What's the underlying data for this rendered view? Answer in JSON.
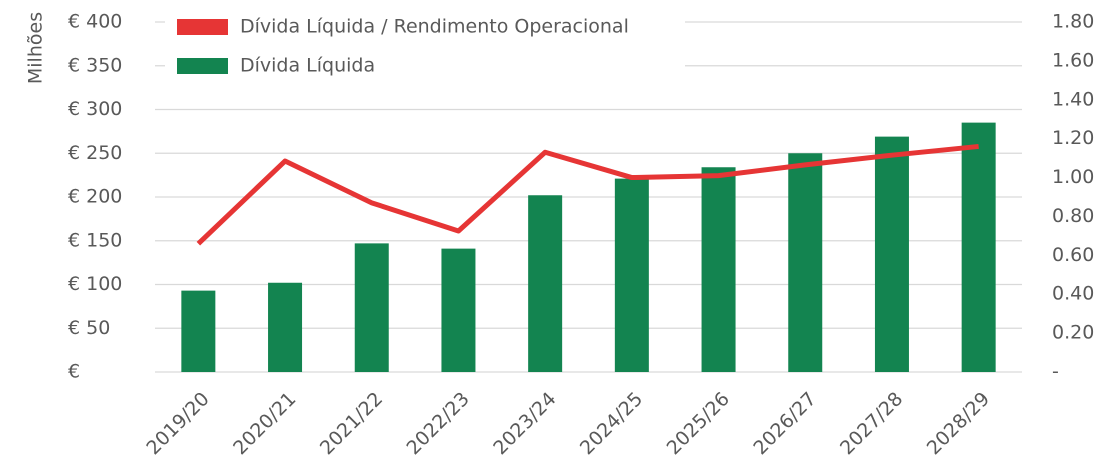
{
  "chart_data": {
    "type": "bar-line",
    "y_label": "Milhões",
    "categories": [
      "2019/20",
      "2020/21",
      "2021/22",
      "2022/23",
      "2023/24",
      "2024/25",
      "2025/26",
      "2026/27",
      "2027/28",
      "2028/29"
    ],
    "series": [
      {
        "name": "Dívida Líquida / Rendimento Operacional",
        "type": "line",
        "axis": "y2",
        "color": "#e63535",
        "values": [
          0.66,
          1.085,
          0.87,
          0.725,
          1.13,
          1.0,
          1.01,
          1.065,
          1.115,
          1.16
        ]
      },
      {
        "name": "Dívida Líquida",
        "type": "bar",
        "axis": "y",
        "color": "#138450",
        "values": [
          93,
          102,
          147,
          141,
          202,
          221,
          234,
          250,
          269,
          285
        ]
      }
    ],
    "ylim": [
      0,
      400
    ],
    "yticks": [
      {
        "value": 0,
        "label": "€"
      },
      {
        "value": 50,
        "label": "€ 50"
      },
      {
        "value": 100,
        "label": "€ 100"
      },
      {
        "value": 150,
        "label": "€ 150"
      },
      {
        "value": 200,
        "label": "€ 200"
      },
      {
        "value": 250,
        "label": "€ 250"
      },
      {
        "value": 300,
        "label": "€ 300"
      },
      {
        "value": 350,
        "label": "€ 350"
      },
      {
        "value": 400,
        "label": "€ 400"
      }
    ],
    "y2lim": [
      0,
      1.8
    ],
    "y2ticks": [
      {
        "value": 0,
        "label": "-"
      },
      {
        "value": 0.2,
        "label": "0.20"
      },
      {
        "value": 0.4,
        "label": "0.40"
      },
      {
        "value": 0.6,
        "label": "0.60"
      },
      {
        "value": 0.8,
        "label": "0.80"
      },
      {
        "value": 1.0,
        "label": "1.00"
      },
      {
        "value": 1.2,
        "label": "1.20"
      },
      {
        "value": 1.4,
        "label": "1.40"
      },
      {
        "value": 1.6,
        "label": "1.60"
      },
      {
        "value": 1.8,
        "label": "1.80"
      }
    ],
    "grid": true,
    "legend": "top-left"
  }
}
